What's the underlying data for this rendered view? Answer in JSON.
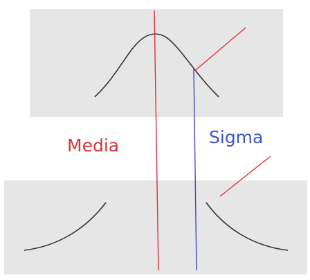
{
  "labels": {
    "mean": "Media",
    "sigma": "Sigma"
  },
  "colors": {
    "panel": "#e6e6e6",
    "curve": "#333333",
    "mean_line": "#e0303a",
    "sigma_line": "#3a4bd1",
    "mean_text": "#d8343c",
    "sigma_text": "#3e54c4"
  }
}
